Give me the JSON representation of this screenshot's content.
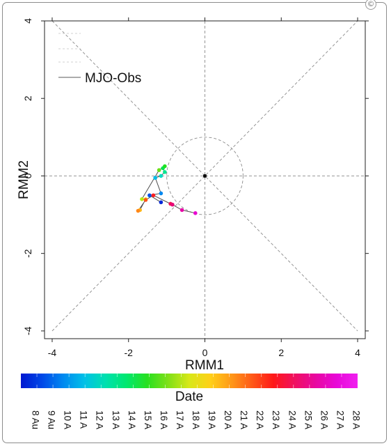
{
  "page": {
    "badge_icon": "copyright-icon",
    "badge_glyph": "©"
  },
  "chart_data": {
    "type": "scatter",
    "title": "",
    "xlabel": "RMM1",
    "ylabel": "RMM2",
    "xlim": [
      -4.2,
      4.2
    ],
    "ylim": [
      -4.2,
      4.0
    ],
    "xticks": [
      -4,
      -2,
      0,
      2,
      4
    ],
    "xtick_labels": [
      "-4",
      "-2",
      "0",
      "2",
      "4"
    ],
    "yticks": [
      -4,
      -2,
      0,
      2,
      4
    ],
    "ytick_labels": [
      "-4",
      "-2",
      "0",
      "2",
      "4"
    ],
    "grid": false,
    "reference_lines": {
      "axes_through_origin": true,
      "diagonals": true,
      "unit_circle_radius": 1,
      "color": "#8a8a8a",
      "style": "dashed"
    },
    "legend": {
      "placement": "top-left",
      "entries": [
        "MJO-Obs"
      ]
    },
    "series": [
      {
        "name": "MJO-Obs",
        "color": "#4d4d4d",
        "points": [
          {
            "date": "8 Aug",
            "x": -1.15,
            "y": -0.68,
            "color": "#0028d8"
          },
          {
            "date": "9 Aug",
            "x": -1.45,
            "y": -0.5,
            "color": "#0050e8"
          },
          {
            "date": "10 Aug",
            "x": -1.15,
            "y": -0.45,
            "color": "#0088f0"
          },
          {
            "date": "11 Aug",
            "x": -1.3,
            "y": -0.05,
            "color": "#00bde8"
          },
          {
            "date": "12 Aug",
            "x": -1.15,
            "y": 0.0,
            "color": "#00dcc0"
          },
          {
            "date": "13 Aug",
            "x": -1.05,
            "y": 0.1,
            "color": "#00e890"
          },
          {
            "date": "14 Aug",
            "x": -1.1,
            "y": 0.2,
            "color": "#00e650"
          },
          {
            "date": "15 Aug",
            "x": -1.05,
            "y": 0.25,
            "color": "#22e020"
          },
          {
            "date": "16 Aug",
            "x": -1.2,
            "y": 0.15,
            "color": "#6ae018"
          },
          {
            "date": "17 Aug",
            "x": -1.65,
            "y": -0.6,
            "color": "#b8e818"
          },
          {
            "date": "18 Aug",
            "x": -1.55,
            "y": -0.6,
            "color": "#f0e818"
          },
          {
            "date": "19 Aug",
            "x": -1.7,
            "y": -0.88,
            "color": "#ffb818"
          },
          {
            "date": "20 Aug",
            "x": -1.75,
            "y": -0.9,
            "color": "#ff8818"
          },
          {
            "date": "21 Aug",
            "x": -1.55,
            "y": -0.62,
            "color": "#ff5018"
          },
          {
            "date": "22 Aug",
            "x": -1.35,
            "y": -0.5,
            "color": "#ff2020"
          },
          {
            "date": "23 Aug",
            "x": -0.9,
            "y": -0.72,
            "color": "#f01050"
          },
          {
            "date": "24 Aug",
            "x": -0.85,
            "y": -0.74,
            "color": "#e80878"
          },
          {
            "date": "25 Aug",
            "x": -0.6,
            "y": -0.88,
            "color": "#e808a8"
          },
          {
            "date": "26 Aug",
            "x": -0.25,
            "y": -0.96,
            "color": "#e808d0"
          }
        ]
      }
    ],
    "colorbar": {
      "title": "Date",
      "colors": [
        "#0018d0",
        "#0048e8",
        "#0088f0",
        "#00c0e8",
        "#00e0b0",
        "#00e870",
        "#28e020",
        "#80e018",
        "#d8e818",
        "#ffd018",
        "#ff9818",
        "#ff5818",
        "#ff1818",
        "#f01060",
        "#e808a0",
        "#e808d8",
        "#f020f0"
      ],
      "labels": [
        "8 Au",
        "9 Au",
        "10 A",
        "11 A",
        "12 A",
        "13 A",
        "14 A",
        "15 A",
        "16 A",
        "17 A",
        "18 A",
        "19 A",
        "20 A",
        "21 A",
        "22 A",
        "23 A",
        "24 A",
        "25 A",
        "26 A",
        "27 A",
        "28 A"
      ]
    }
  }
}
